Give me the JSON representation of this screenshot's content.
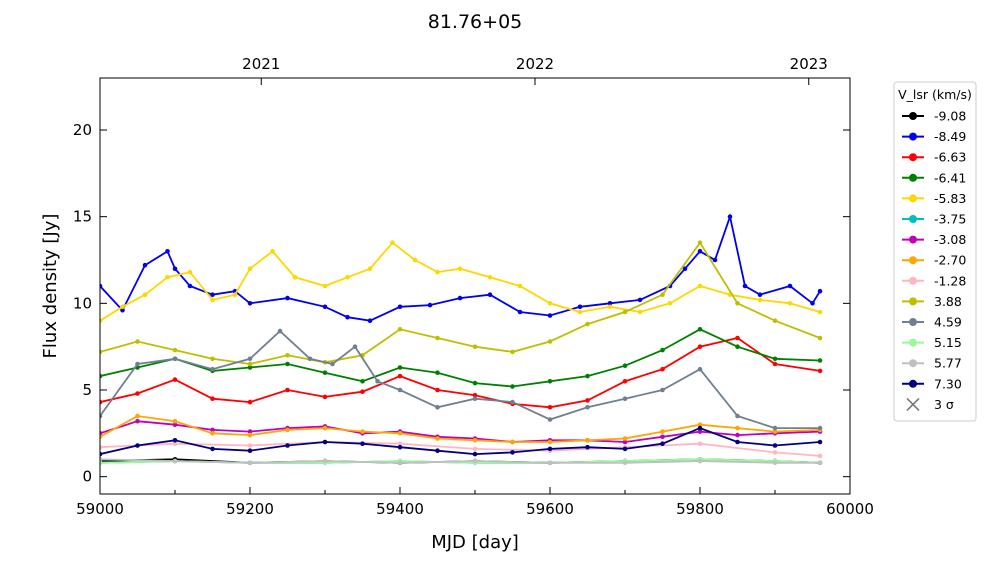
{
  "chart_data": {
    "type": "line",
    "title": "81.76+05",
    "xlabel": "MJD [day]",
    "ylabel": "Flux density [Jy]",
    "xlim": [
      59000,
      60000
    ],
    "ylim": [
      -1,
      23
    ],
    "xticks": [
      59000,
      59200,
      59400,
      59600,
      59800,
      60000
    ],
    "yticks": [
      0,
      5,
      10,
      15,
      20
    ],
    "top_axis": {
      "labels": [
        "2021",
        "2022",
        "2023"
      ],
      "mjd": [
        59215,
        59580,
        59945
      ]
    },
    "legend": {
      "title": "V_lsr (km/s)",
      "position": "outside-right"
    },
    "threshold_label": "3 σ",
    "series": [
      {
        "name": "-9.08",
        "color": "#000000",
        "x": [
          59000,
          59100,
          59200,
          59300,
          59400,
          59500,
          59600,
          59700,
          59800,
          59900,
          59960
        ],
        "values": [
          0.9,
          1.0,
          0.8,
          0.9,
          0.8,
          0.9,
          0.8,
          0.9,
          1.0,
          0.9,
          0.8
        ]
      },
      {
        "name": "-8.49",
        "color": "#0000ee",
        "x": [
          59000,
          59030,
          59060,
          59090,
          59100,
          59120,
          59150,
          59180,
          59200,
          59250,
          59300,
          59330,
          59360,
          59400,
          59440,
          59480,
          59520,
          59560,
          59600,
          59640,
          59680,
          59720,
          59760,
          59780,
          59800,
          59820,
          59840,
          59860,
          59880,
          59920,
          59950,
          59960
        ],
        "values": [
          11.0,
          9.6,
          12.2,
          13.0,
          12.0,
          11.0,
          10.5,
          10.7,
          10.0,
          10.3,
          9.8,
          9.2,
          9.0,
          9.8,
          9.9,
          10.3,
          10.5,
          9.5,
          9.3,
          9.8,
          10.0,
          10.2,
          11.0,
          12.0,
          13.0,
          12.5,
          15.0,
          11.0,
          10.5,
          11.0,
          10.0,
          10.7
        ]
      },
      {
        "name": "-6.63",
        "color": "#ff0000",
        "x": [
          59000,
          59050,
          59100,
          59150,
          59200,
          59250,
          59300,
          59350,
          59400,
          59450,
          59500,
          59550,
          59600,
          59650,
          59700,
          59750,
          59800,
          59850,
          59900,
          59960
        ],
        "values": [
          4.3,
          4.8,
          5.6,
          4.5,
          4.3,
          5.0,
          4.6,
          4.9,
          5.8,
          5.0,
          4.7,
          4.2,
          4.0,
          4.4,
          5.5,
          6.2,
          7.5,
          8.0,
          6.5,
          6.1
        ]
      },
      {
        "name": "-6.41",
        "color": "#008000",
        "x": [
          59000,
          59050,
          59100,
          59150,
          59200,
          59250,
          59300,
          59350,
          59400,
          59450,
          59500,
          59550,
          59600,
          59650,
          59700,
          59750,
          59800,
          59850,
          59900,
          59960
        ],
        "values": [
          5.8,
          6.3,
          6.8,
          6.1,
          6.3,
          6.5,
          6.0,
          5.5,
          6.3,
          6.0,
          5.4,
          5.2,
          5.5,
          5.8,
          6.4,
          7.3,
          8.5,
          7.5,
          6.8,
          6.7
        ]
      },
      {
        "name": "-5.83",
        "color": "#ffd700",
        "x": [
          59000,
          59030,
          59060,
          59090,
          59120,
          59150,
          59180,
          59200,
          59230,
          59260,
          59300,
          59330,
          59360,
          59390,
          59420,
          59450,
          59480,
          59520,
          59560,
          59600,
          59640,
          59680,
          59720,
          59760,
          59800,
          59840,
          59880,
          59920,
          59960
        ],
        "values": [
          9.0,
          9.8,
          10.5,
          11.5,
          11.8,
          10.2,
          10.5,
          12.0,
          13.0,
          11.5,
          11.0,
          11.5,
          12.0,
          13.5,
          12.5,
          11.8,
          12.0,
          11.5,
          11.0,
          10.0,
          9.5,
          9.8,
          9.5,
          10.0,
          11.0,
          10.5,
          10.2,
          10.0,
          9.5
        ]
      },
      {
        "name": "-3.75",
        "color": "#00bfbf",
        "x": [
          59000,
          59100,
          59200,
          59300,
          59400,
          59500,
          59600,
          59700,
          59800,
          59900,
          59960
        ],
        "values": [
          0.8,
          0.9,
          0.8,
          0.8,
          0.9,
          0.8,
          0.8,
          0.9,
          1.0,
          0.9,
          0.8
        ]
      },
      {
        "name": "-3.08",
        "color": "#bf00bf",
        "x": [
          59000,
          59050,
          59100,
          59150,
          59200,
          59250,
          59300,
          59350,
          59400,
          59450,
          59500,
          59550,
          59600,
          59650,
          59700,
          59750,
          59800,
          59850,
          59900,
          59960
        ],
        "values": [
          2.5,
          3.2,
          3.0,
          2.7,
          2.6,
          2.8,
          2.9,
          2.5,
          2.6,
          2.3,
          2.2,
          2.0,
          2.1,
          2.1,
          2.0,
          2.3,
          2.6,
          2.4,
          2.5,
          2.6
        ]
      },
      {
        "name": "-2.70",
        "color": "#ffa500",
        "x": [
          59000,
          59050,
          59100,
          59150,
          59200,
          59250,
          59300,
          59350,
          59400,
          59450,
          59500,
          59550,
          59600,
          59650,
          59700,
          59750,
          59800,
          59850,
          59900,
          59960
        ],
        "values": [
          2.3,
          3.5,
          3.2,
          2.5,
          2.4,
          2.7,
          2.8,
          2.6,
          2.5,
          2.2,
          2.1,
          2.0,
          2.0,
          2.1,
          2.2,
          2.6,
          3.0,
          2.8,
          2.6,
          2.7
        ]
      },
      {
        "name": "-1.28",
        "color": "#ffb6c1",
        "x": [
          59000,
          59100,
          59200,
          59300,
          59400,
          59500,
          59600,
          59700,
          59800,
          59900,
          59960
        ],
        "values": [
          1.7,
          1.9,
          1.8,
          2.0,
          1.9,
          1.6,
          1.5,
          1.7,
          1.9,
          1.4,
          1.2
        ]
      },
      {
        "name": "3.88",
        "color": "#bfbf00",
        "x": [
          59000,
          59050,
          59100,
          59150,
          59200,
          59250,
          59300,
          59350,
          59400,
          59450,
          59500,
          59550,
          59600,
          59650,
          59700,
          59750,
          59800,
          59850,
          59900,
          59960
        ],
        "values": [
          7.2,
          7.8,
          7.3,
          6.8,
          6.5,
          7.0,
          6.6,
          7.0,
          8.5,
          8.0,
          7.5,
          7.2,
          7.8,
          8.8,
          9.5,
          10.5,
          13.5,
          10.0,
          9.0,
          8.0
        ]
      },
      {
        "name": "4.59",
        "color": "#708090",
        "x": [
          59000,
          59050,
          59100,
          59150,
          59200,
          59240,
          59280,
          59310,
          59340,
          59370,
          59400,
          59450,
          59500,
          59550,
          59600,
          59650,
          59700,
          59750,
          59800,
          59850,
          59900,
          59960
        ],
        "values": [
          3.5,
          6.5,
          6.8,
          6.2,
          6.8,
          8.4,
          6.8,
          6.5,
          7.5,
          5.5,
          5.0,
          4.0,
          4.5,
          4.3,
          3.3,
          4.0,
          4.5,
          5.0,
          6.2,
          3.5,
          2.8,
          2.8
        ]
      },
      {
        "name": "5.15",
        "color": "#98fb98",
        "x": [
          59000,
          59100,
          59200,
          59300,
          59400,
          59500,
          59600,
          59700,
          59800,
          59900,
          59960
        ],
        "values": [
          0.8,
          0.9,
          0.8,
          0.8,
          0.9,
          0.8,
          0.8,
          0.9,
          1.0,
          0.9,
          0.8
        ]
      },
      {
        "name": "5.77",
        "color": "#c0c0c0",
        "x": [
          59000,
          59100,
          59200,
          59300,
          59400,
          59500,
          59600,
          59700,
          59800,
          59900,
          59960
        ],
        "values": [
          1.0,
          0.9,
          0.8,
          0.9,
          0.8,
          0.9,
          0.8,
          0.8,
          0.9,
          0.8,
          0.8
        ]
      },
      {
        "name": "7.30",
        "color": "#000080",
        "x": [
          59000,
          59050,
          59100,
          59150,
          59200,
          59250,
          59300,
          59350,
          59400,
          59450,
          59500,
          59550,
          59600,
          59650,
          59700,
          59750,
          59800,
          59850,
          59900,
          59960
        ],
        "values": [
          1.3,
          1.8,
          2.1,
          1.6,
          1.5,
          1.8,
          2.0,
          1.9,
          1.7,
          1.5,
          1.3,
          1.4,
          1.6,
          1.7,
          1.6,
          1.9,
          2.8,
          2.0,
          1.8,
          2.0
        ]
      }
    ]
  }
}
